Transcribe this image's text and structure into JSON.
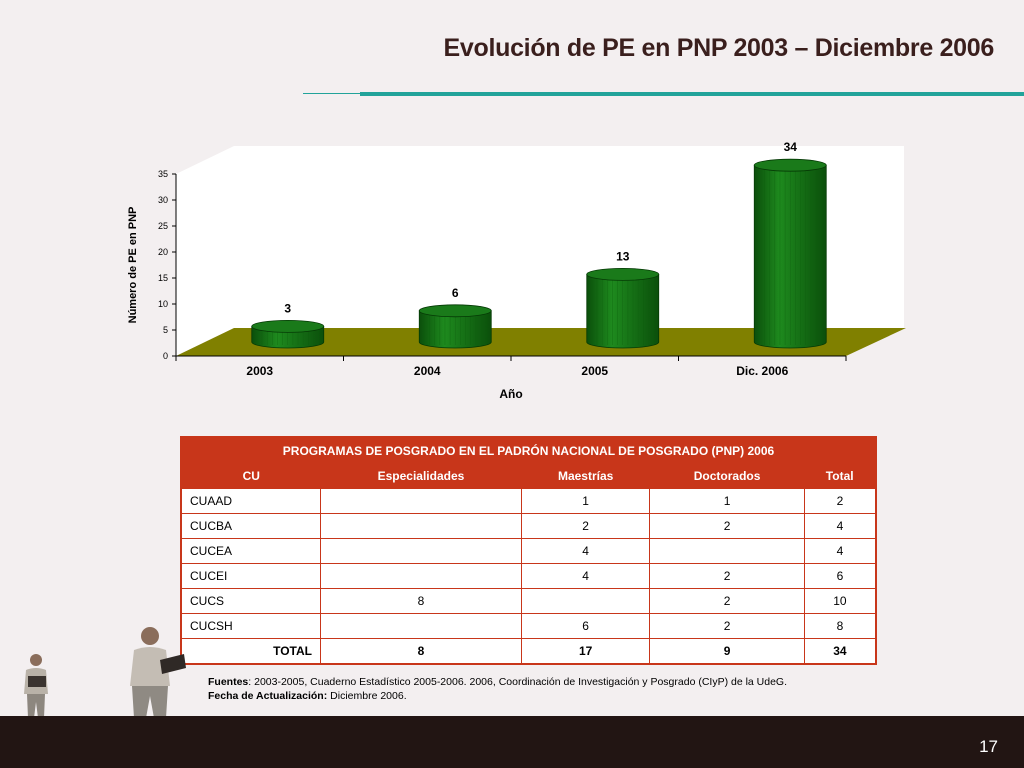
{
  "slide": {
    "title": "Evolución de PE en PNP 2003 – Diciembre 2006",
    "page_number": "17"
  },
  "chart_data": {
    "type": "bar",
    "categories": [
      "2003",
      "2004",
      "2005",
      "Dic. 2006"
    ],
    "values": [
      3,
      6,
      13,
      34
    ],
    "data_labels": [
      "3",
      "6",
      "13",
      "34"
    ],
    "xlabel": "Año",
    "ylabel": "Número de PE en PNP",
    "ylim": [
      0,
      35
    ],
    "yticks": [
      "0",
      "5",
      "10",
      "15",
      "20",
      "25",
      "30",
      "35"
    ],
    "grid": false,
    "style": "3d-cylinder",
    "colors": {
      "bar": "#1e8a1e",
      "bar_dark": "#0b4f0b",
      "floor": "#808000"
    }
  },
  "table": {
    "caption": "PROGRAMAS DE POSGRADO EN EL PADRÓN NACIONAL DE POSGRADO (PNP) 2006",
    "headers": [
      "CU",
      "Especialidades",
      "Maestrías",
      "Doctorados",
      "Total"
    ],
    "rows": [
      [
        "CUAAD",
        "",
        "1",
        "1",
        "2"
      ],
      [
        "CUCBA",
        "",
        "2",
        "2",
        "4"
      ],
      [
        "CUCEA",
        "",
        "4",
        "",
        "4"
      ],
      [
        "CUCEI",
        "",
        "4",
        "2",
        "6"
      ],
      [
        "CUCS",
        "8",
        "",
        "2",
        "10"
      ],
      [
        "CUCSH",
        "",
        "6",
        "2",
        "8"
      ]
    ],
    "total": [
      "TOTAL",
      "8",
      "17",
      "9",
      "34"
    ],
    "colors": {
      "header": "#c8361a"
    }
  },
  "notes": {
    "sources_label": "Fuentes",
    "sources_text": ": 2003-2005, Cuaderno Estadístico 2005-2006. 2006, Coordinación de Investigación y Posgrado (CIyP) de la UdeG.",
    "updated_label": "Fecha de Actualización:",
    "updated_text": " Diciembre 2006."
  }
}
